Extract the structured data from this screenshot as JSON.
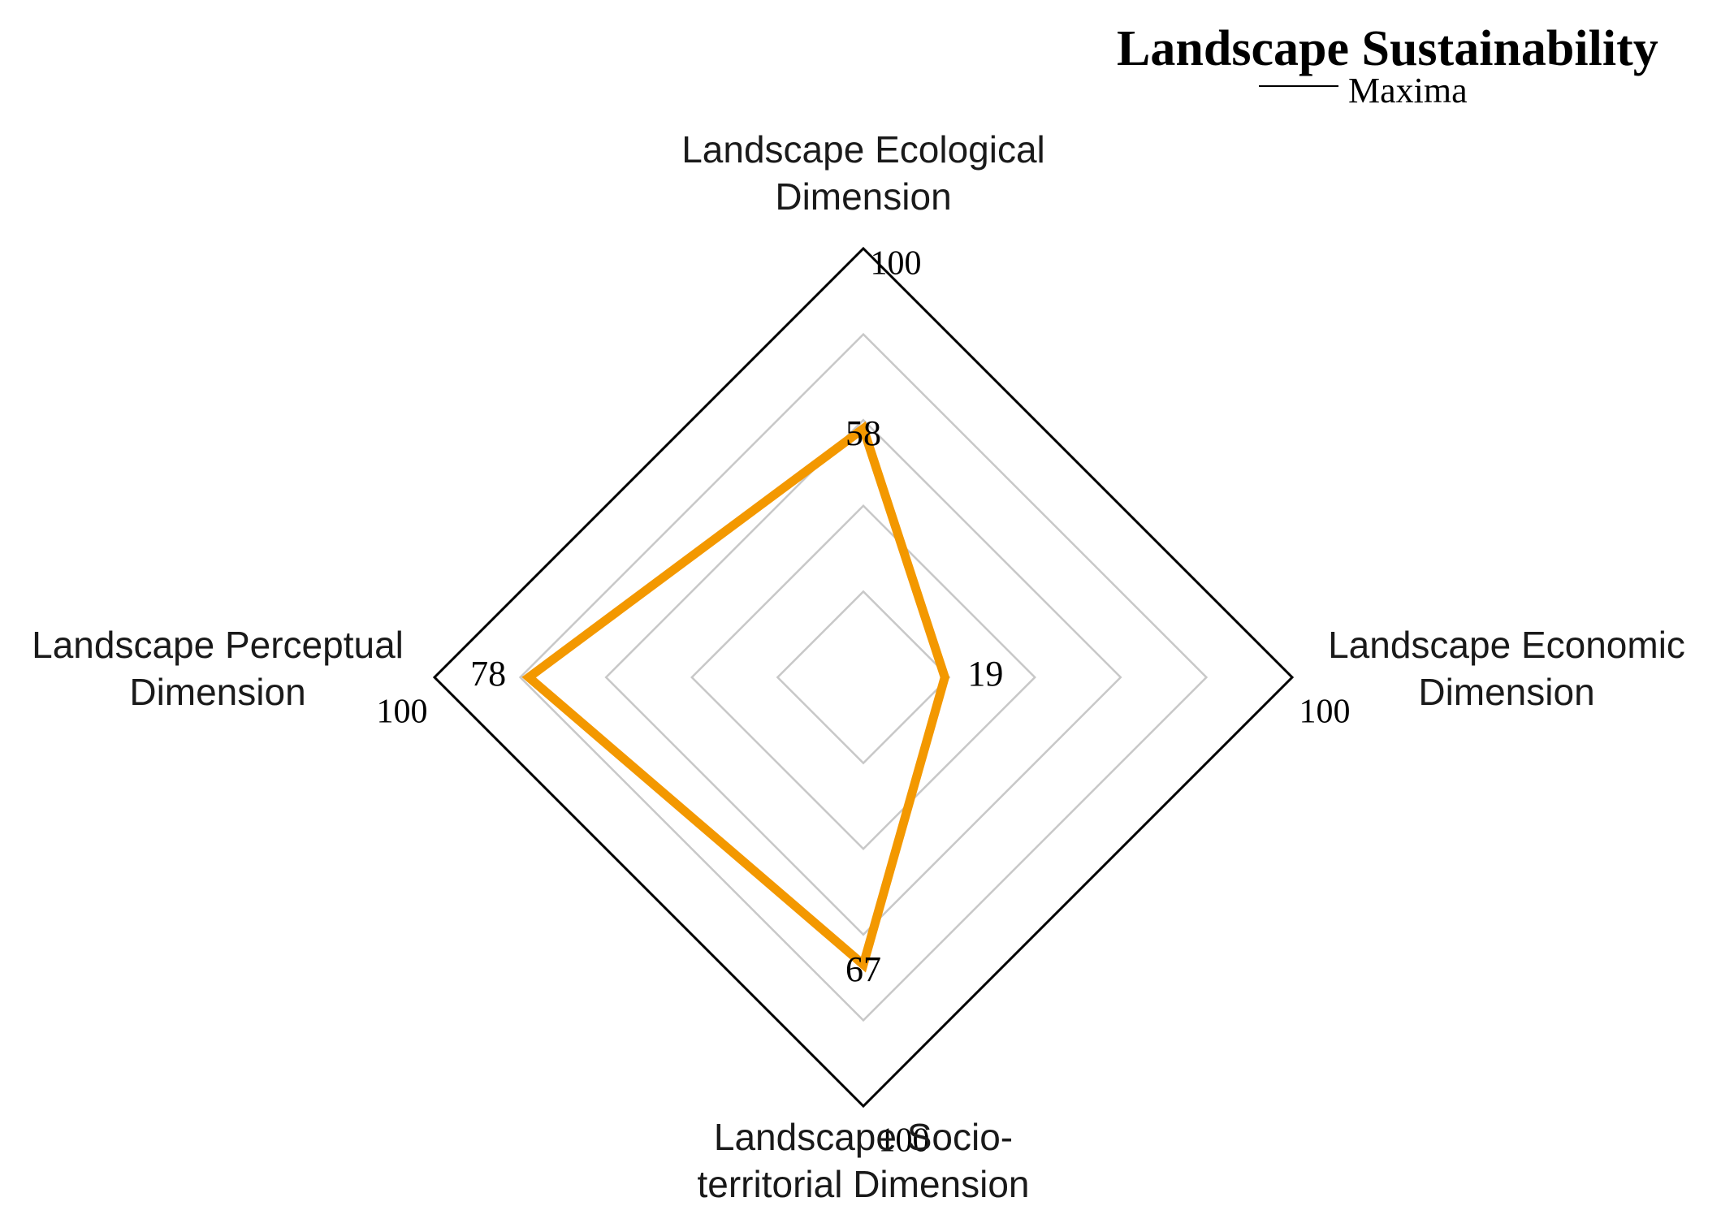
{
  "chart_data": {
    "type": "radar",
    "title": "Landscape Sustainability",
    "axes": [
      {
        "label_lines": [
          "Landscape Ecological",
          "Dimension"
        ],
        "max_label": "100"
      },
      {
        "label_lines": [
          "Landscape Economic",
          "Dimension"
        ],
        "max_label": "100"
      },
      {
        "label_lines": [
          "Landscape Socio-",
          "territorial Dimension"
        ],
        "max_label": "100"
      },
      {
        "label_lines": [
          "Landscape Perceptual",
          "Dimension"
        ],
        "max_label": "100"
      }
    ],
    "range": [
      0,
      100
    ],
    "grid_levels": [
      20,
      40,
      60,
      80,
      100
    ],
    "series": [
      {
        "name": "Maxima",
        "values": [
          58,
          19,
          67,
          78
        ],
        "value_labels": [
          "58",
          "19",
          "67",
          "78"
        ],
        "color": "#f39800"
      }
    ],
    "legend": {
      "position": "top-right",
      "line_color": "#000000"
    },
    "grid_color": "#c8c8c8",
    "outer_color": "#000000"
  }
}
